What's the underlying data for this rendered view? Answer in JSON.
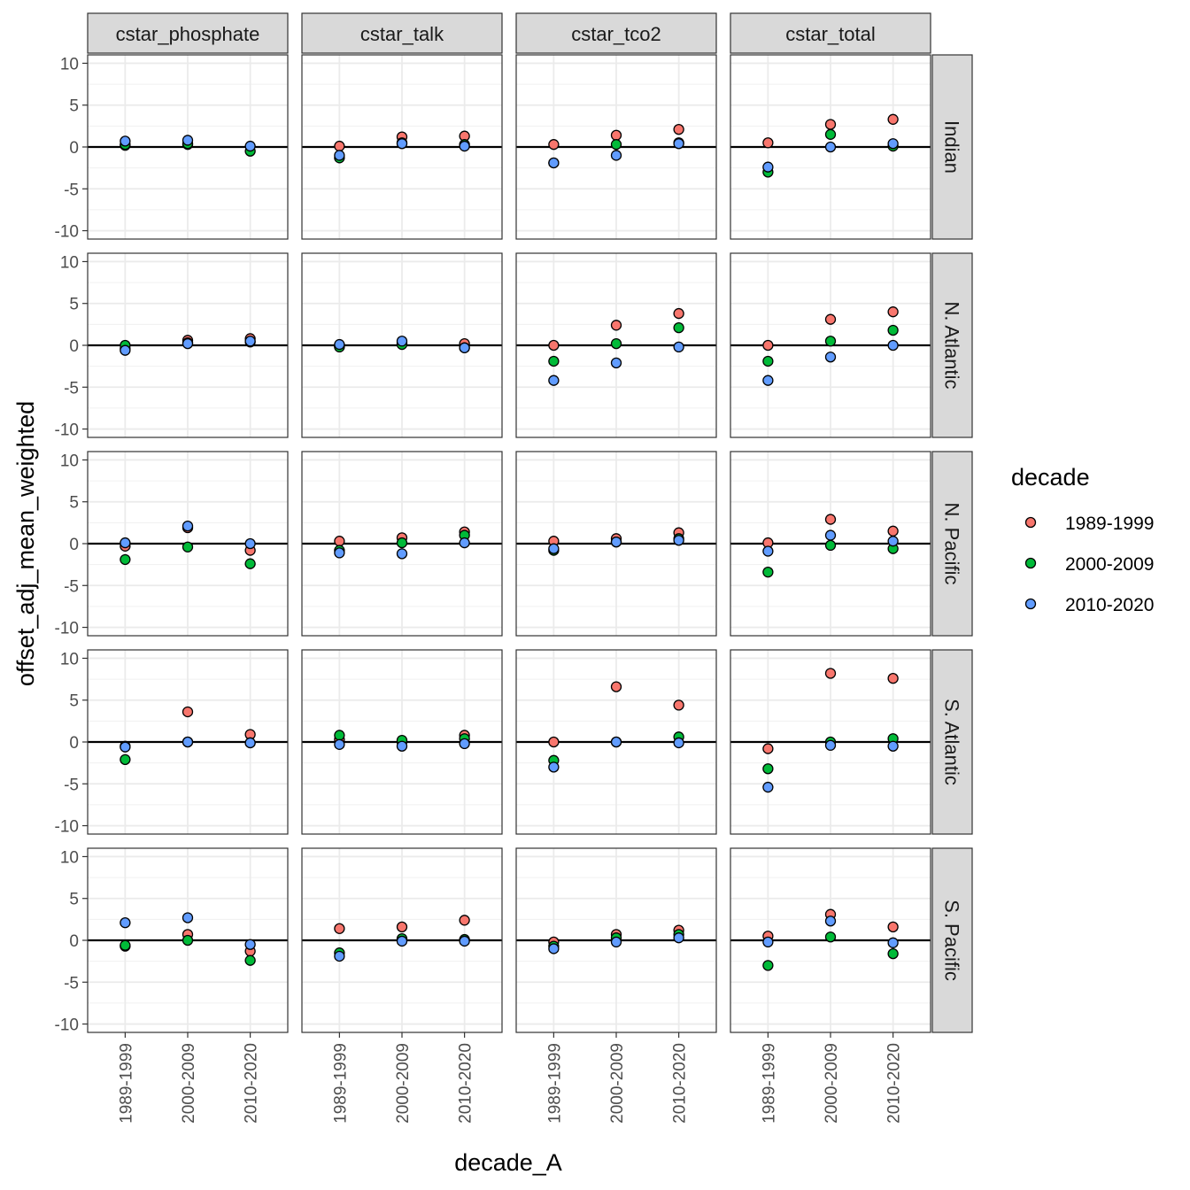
{
  "chart_data": {
    "type": "scatter",
    "facet_columns": [
      "cstar_phosphate",
      "cstar_talk",
      "cstar_tco2",
      "cstar_total"
    ],
    "facet_rows": [
      "Indian",
      "N. Atlantic",
      "N. Pacific",
      "S. Atlantic",
      "S. Pacific"
    ],
    "categories": [
      "1989-1999",
      "2000-2009",
      "2010-2020"
    ],
    "xlabel": "decade_A",
    "ylabel": "offset_adj_mean_weighted",
    "ylim": [
      -11,
      11
    ],
    "yticks": [
      "10",
      "5",
      "0",
      "-5",
      "-10"
    ],
    "yticks_values": [
      10,
      5,
      0,
      -5,
      -10
    ],
    "hline": 0,
    "legend": {
      "title": "decade",
      "position": "right",
      "entries": [
        "1989-1999",
        "2000-2009",
        "2010-2020"
      ],
      "colors": [
        "#F8766D",
        "#00BA38",
        "#619CFF"
      ]
    },
    "panels": [
      {
        "row": "Indian",
        "col": "cstar_phosphate",
        "series": [
          [
            0.2,
            0.3,
            null
          ],
          [
            0.3,
            0.4,
            -0.5
          ],
          [
            0.7,
            0.8,
            0.1
          ]
        ]
      },
      {
        "row": "Indian",
        "col": "cstar_talk",
        "series": [
          [
            0.1,
            1.2,
            1.3
          ],
          [
            -1.3,
            0.5,
            0.3
          ],
          [
            -1.0,
            0.4,
            0.1
          ]
        ]
      },
      {
        "row": "Indian",
        "col": "cstar_tco2",
        "series": [
          [
            0.3,
            1.4,
            2.1
          ],
          [
            -1.9,
            0.3,
            0.5
          ],
          [
            -1.9,
            -1.0,
            0.4
          ]
        ]
      },
      {
        "row": "Indian",
        "col": "cstar_total",
        "series": [
          [
            0.5,
            2.7,
            3.3
          ],
          [
            -3.0,
            1.5,
            0.1
          ],
          [
            -2.4,
            0.0,
            0.4
          ]
        ]
      },
      {
        "row": "N. Atlantic",
        "col": "cstar_phosphate",
        "series": [
          [
            -0.4,
            0.6,
            0.8
          ],
          [
            0.0,
            0.3,
            0.4
          ],
          [
            -0.6,
            0.2,
            0.5
          ]
        ]
      },
      {
        "row": "N. Atlantic",
        "col": "cstar_talk",
        "series": [
          [
            -0.1,
            0.3,
            0.2
          ],
          [
            -0.2,
            0.1,
            -0.3
          ],
          [
            0.1,
            0.5,
            -0.3
          ]
        ]
      },
      {
        "row": "N. Atlantic",
        "col": "cstar_tco2",
        "series": [
          [
            0.0,
            2.4,
            3.8
          ],
          [
            -1.9,
            0.2,
            2.1
          ],
          [
            -4.2,
            -2.1,
            -0.2
          ]
        ]
      },
      {
        "row": "N. Atlantic",
        "col": "cstar_total",
        "series": [
          [
            0.0,
            3.1,
            4.0
          ],
          [
            -1.9,
            0.5,
            1.8
          ],
          [
            -4.2,
            -1.4,
            0.0
          ]
        ]
      },
      {
        "row": "N. Pacific",
        "col": "cstar_phosphate",
        "series": [
          [
            -0.3,
            1.9,
            -0.8
          ],
          [
            -1.9,
            -0.4,
            -2.4
          ],
          [
            0.1,
            2.1,
            0.0
          ]
        ]
      },
      {
        "row": "N. Pacific",
        "col": "cstar_talk",
        "series": [
          [
            0.3,
            0.7,
            1.4
          ],
          [
            -0.8,
            0.1,
            1.0
          ],
          [
            -1.1,
            -1.2,
            0.1
          ]
        ]
      },
      {
        "row": "N. Pacific",
        "col": "cstar_tco2",
        "series": [
          [
            0.3,
            0.6,
            1.3
          ],
          [
            -0.8,
            0.2,
            0.6
          ],
          [
            -0.6,
            0.2,
            0.4
          ]
        ]
      },
      {
        "row": "N. Pacific",
        "col": "cstar_total",
        "series": [
          [
            0.1,
            2.9,
            1.5
          ],
          [
            -3.4,
            -0.2,
            -0.6
          ],
          [
            -0.9,
            1.0,
            0.3
          ]
        ]
      },
      {
        "row": "S. Atlantic",
        "col": "cstar_phosphate",
        "series": [
          [
            -0.5,
            3.6,
            0.9
          ],
          [
            -2.1,
            0.0,
            -0.1
          ],
          [
            -0.6,
            0.0,
            -0.1
          ]
        ]
      },
      {
        "row": "S. Atlantic",
        "col": "cstar_talk",
        "series": [
          [
            0.3,
            0.0,
            0.8
          ],
          [
            0.8,
            0.2,
            0.4
          ],
          [
            -0.3,
            -0.5,
            -0.2
          ]
        ]
      },
      {
        "row": "S. Atlantic",
        "col": "cstar_tco2",
        "series": [
          [
            0.0,
            6.6,
            4.4
          ],
          [
            -2.2,
            0.0,
            0.6
          ],
          [
            -3.0,
            0.0,
            -0.1
          ]
        ]
      },
      {
        "row": "S. Atlantic",
        "col": "cstar_total",
        "series": [
          [
            -0.8,
            8.2,
            7.6
          ],
          [
            -3.2,
            0.0,
            0.4
          ],
          [
            -5.4,
            -0.4,
            -0.5
          ]
        ]
      },
      {
        "row": "S. Pacific",
        "col": "cstar_phosphate",
        "series": [
          [
            -0.7,
            0.7,
            -1.3
          ],
          [
            -0.6,
            0.0,
            -2.4
          ],
          [
            2.1,
            2.7,
            -0.5
          ]
        ]
      },
      {
        "row": "S. Pacific",
        "col": "cstar_talk",
        "series": [
          [
            1.4,
            1.6,
            2.4
          ],
          [
            -1.5,
            0.2,
            0.1
          ],
          [
            -1.9,
            -0.1,
            -0.1
          ]
        ]
      },
      {
        "row": "S. Pacific",
        "col": "cstar_tco2",
        "series": [
          [
            -0.2,
            0.7,
            1.2
          ],
          [
            -0.7,
            0.3,
            0.7
          ],
          [
            -1.0,
            -0.2,
            0.3
          ]
        ]
      },
      {
        "row": "S. Pacific",
        "col": "cstar_total",
        "series": [
          [
            0.5,
            3.1,
            1.6
          ],
          [
            -3.0,
            0.4,
            -1.6
          ],
          [
            -0.2,
            2.3,
            -0.3
          ]
        ]
      }
    ]
  }
}
